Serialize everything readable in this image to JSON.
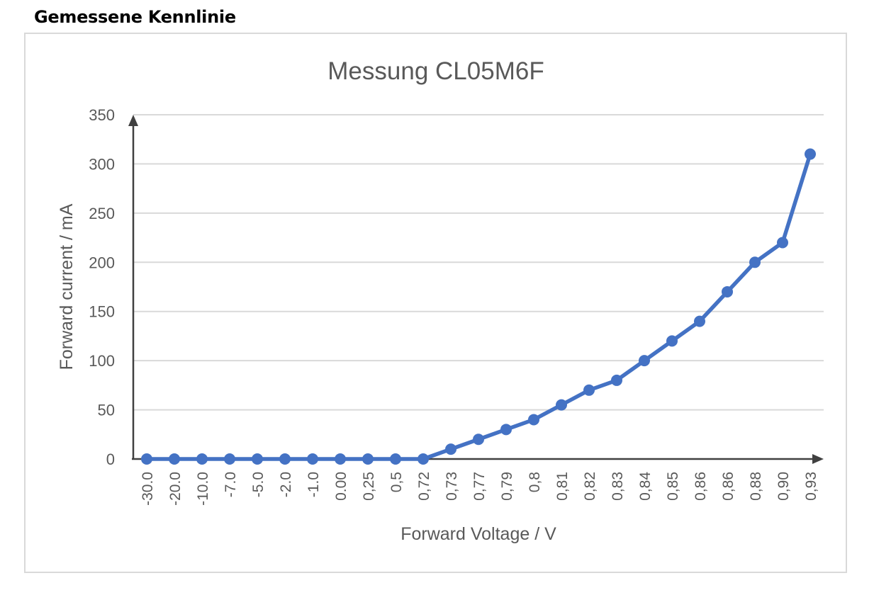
{
  "page": {
    "heading": "Gemessene Kennlinie"
  },
  "chart_data": {
    "type": "line",
    "title": "Messung CL05M6F",
    "xlabel": "Forward Voltage / V",
    "ylabel": "Forward current / mA",
    "categories": [
      "-30.0",
      "-20.0",
      "-10.0",
      "-7.0",
      "-5.0",
      "-2.0",
      "-1.0",
      "0.00",
      "0,25",
      "0,5",
      "0,72",
      "0,73",
      "0,77",
      "0,79",
      "0,8",
      "0,81",
      "0,82",
      "0,83",
      "0,84",
      "0,85",
      "0,86",
      "0,86",
      "0,88",
      "0,90",
      "0,93"
    ],
    "series": [
      {
        "values": [
          0,
          0,
          0,
          0,
          0,
          0,
          0,
          0,
          0,
          0,
          0,
          10,
          20,
          30,
          40,
          55,
          70,
          80,
          100,
          120,
          140,
          170,
          200,
          220,
          310
        ]
      }
    ],
    "ylim": [
      0,
      350
    ],
    "yticks": [
      0,
      50,
      100,
      150,
      200,
      250,
      300,
      350
    ],
    "grid": true,
    "legend": "none",
    "colors": {
      "line": "#4472c4",
      "grid": "#d9d9d9",
      "axis": "#404040",
      "text": "#595959"
    }
  }
}
